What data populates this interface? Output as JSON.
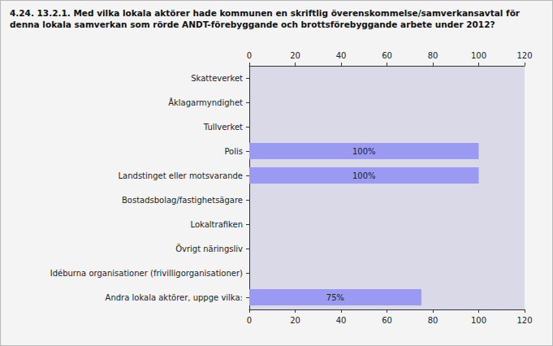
{
  "chart_data": {
    "type": "bar",
    "orientation": "horizontal",
    "title": "4.24. 13.2.1. Med vilka lokala aktörer hade kommunen en skriftlig överenskommelse/samverkansavtal för denna lokala samverkan som rörde ANDT-förebyggande och brottsförebyggande arbete under 2012?",
    "categories": [
      "Skatteverket",
      "Åklagarmyndighet",
      "Tullverket",
      "Polis",
      "Landstinget eller motsvarande",
      "Bostadsbolag/fastighetsägare",
      "Lokaltrafiken",
      "Övrigt näringsliv",
      "Idéburna organisationer (frivilligorganisationer)",
      "Andra lokala aktörer, uppge vilka:"
    ],
    "values": [
      0,
      0,
      0,
      100,
      100,
      0,
      0,
      0,
      0,
      75
    ],
    "value_labels": [
      null,
      null,
      null,
      "100%",
      "100%",
      null,
      null,
      null,
      null,
      "75%"
    ],
    "data_labels": true,
    "color": "#9a9af2",
    "xlim": [
      0,
      120
    ],
    "xticks": [
      0,
      20,
      40,
      60,
      80,
      100,
      120
    ],
    "grid": false
  }
}
